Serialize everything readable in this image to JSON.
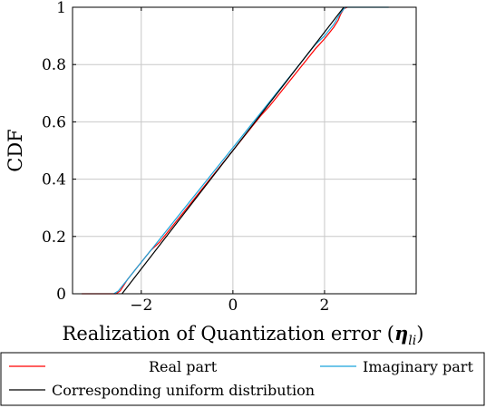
{
  "chart_data": {
    "type": "line",
    "title": "",
    "xlabel": "Realization of Quantization error (",
    "xlabel_symbol": "η",
    "xlabel_subscript": "li",
    "xlabel_close": ")",
    "ylabel": "CDF",
    "xlim": [
      -3.5,
      4
    ],
    "ylim": [
      0,
      1
    ],
    "xticks": [
      -2,
      0,
      2
    ],
    "xtick_labels": [
      "−2",
      "0",
      "2"
    ],
    "yticks": [
      0,
      0.2,
      0.4,
      0.6,
      0.8,
      1
    ],
    "ytick_labels": [
      "0",
      "0.2",
      "0.4",
      "0.6",
      "0.8",
      "1"
    ],
    "grid": true,
    "legend_placement": "below",
    "series": [
      {
        "name": "Real part",
        "color": "#ff0000",
        "x": [
          -3.3,
          -2.55,
          -2.46,
          -2.38,
          -2.3,
          -2.2,
          -2.1,
          -2.0,
          -1.9,
          -1.8,
          -1.6,
          -1.4,
          -1.2,
          -1.0,
          -0.8,
          -0.6,
          -0.4,
          -0.2,
          0.0,
          0.2,
          0.4,
          0.6,
          0.8,
          1.0,
          1.2,
          1.4,
          1.6,
          1.8,
          2.0,
          2.1,
          2.2,
          2.3,
          2.35,
          2.42,
          2.5
        ],
        "y": [
          0.0,
          0.0,
          0.01,
          0.03,
          0.05,
          0.07,
          0.09,
          0.11,
          0.13,
          0.15,
          0.18,
          0.22,
          0.26,
          0.3,
          0.34,
          0.38,
          0.42,
          0.46,
          0.5,
          0.54,
          0.58,
          0.62,
          0.655,
          0.695,
          0.735,
          0.775,
          0.815,
          0.855,
          0.89,
          0.91,
          0.93,
          0.955,
          0.975,
          0.995,
          1.0
        ]
      },
      {
        "name": "Imaginary part",
        "color": "#1aa5dc",
        "x": [
          -2.6,
          -2.5,
          -2.4,
          -2.3,
          -2.2,
          -2.0,
          -1.8,
          -1.6,
          -1.4,
          -1.2,
          -1.0,
          -0.8,
          -0.6,
          -0.4,
          -0.2,
          0.0,
          0.2,
          0.4,
          0.6,
          0.8,
          1.0,
          1.2,
          1.4,
          1.6,
          1.8,
          2.0,
          2.2,
          2.35,
          2.45,
          3.0,
          3.4
        ],
        "y": [
          0.0,
          0.01,
          0.03,
          0.05,
          0.07,
          0.11,
          0.15,
          0.19,
          0.23,
          0.27,
          0.31,
          0.35,
          0.39,
          0.43,
          0.47,
          0.51,
          0.55,
          0.59,
          0.63,
          0.67,
          0.71,
          0.75,
          0.79,
          0.83,
          0.87,
          0.9,
          0.94,
          0.98,
          1.0,
          1.0,
          1.0
        ]
      },
      {
        "name": "Corresponding uniform distribution",
        "color": "#000000",
        "x": [
          -2.42,
          2.42
        ],
        "y": [
          0.0,
          1.0
        ]
      }
    ]
  }
}
